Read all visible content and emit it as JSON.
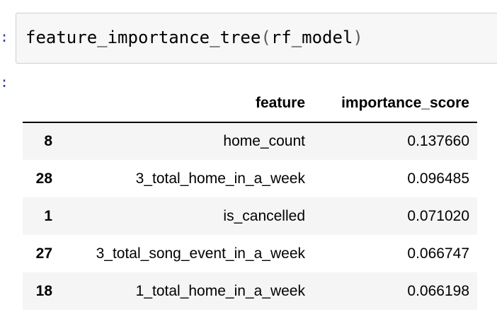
{
  "cell": {
    "in_prompt": ":",
    "out_prompt": ":",
    "code": {
      "func": "feature_importance_tree",
      "open_paren": "(",
      "arg": "rf_model",
      "close_paren": ")"
    }
  },
  "table": {
    "columns": [
      "",
      "feature",
      "importance_score"
    ],
    "rows": [
      {
        "index": "8",
        "feature": "home_count",
        "importance_score": "0.137660"
      },
      {
        "index": "28",
        "feature": "3_total_home_in_a_week",
        "importance_score": "0.096485"
      },
      {
        "index": "1",
        "feature": "is_cancelled",
        "importance_score": "0.071020"
      },
      {
        "index": "27",
        "feature": "3_total_song_event_in_a_week",
        "importance_score": "0.066747"
      },
      {
        "index": "18",
        "feature": "1_total_home_in_a_week",
        "importance_score": "0.066198"
      }
    ]
  },
  "colors": {
    "prompt": "#303f9f",
    "cell_background": "#f7f7f7",
    "row_stripe": "#f5f5f5"
  }
}
